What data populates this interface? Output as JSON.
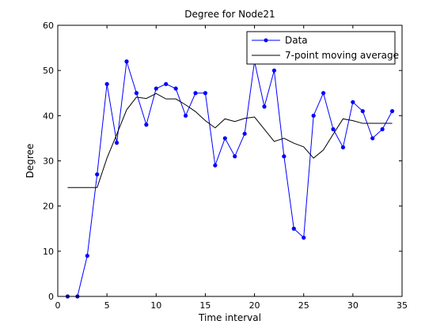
{
  "chart_data": {
    "type": "line",
    "title": "Degree for Node21",
    "xlabel": "Time interval",
    "ylabel": "Degree",
    "xlim": [
      0,
      35
    ],
    "ylim": [
      0,
      60
    ],
    "xticks": [
      "0",
      "5",
      "10",
      "15",
      "20",
      "25",
      "30",
      "35"
    ],
    "yticks": [
      "0",
      "10",
      "20",
      "30",
      "40",
      "50",
      "60"
    ],
    "grid": false,
    "legend_position": "top-right",
    "series": [
      {
        "name": "Data",
        "style": "line-with-markers",
        "color": "#0000ff",
        "x": [
          1,
          2,
          3,
          4,
          5,
          6,
          7,
          8,
          9,
          10,
          11,
          12,
          13,
          14,
          15,
          16,
          17,
          18,
          19,
          20,
          21,
          22,
          23,
          24,
          25,
          26,
          27,
          28,
          29,
          30,
          31,
          32,
          33,
          34
        ],
        "y": [
          0,
          0,
          9,
          27,
          47,
          34,
          52,
          45,
          38,
          46,
          47,
          46,
          40,
          45,
          45,
          29,
          35,
          31,
          36,
          52,
          42,
          50,
          31,
          15,
          13,
          40,
          45,
          37,
          33,
          43,
          41,
          35,
          37,
          41
        ]
      },
      {
        "name": "7-point moving average",
        "style": "line",
        "color": "#000000",
        "x": [
          1,
          2,
          3,
          4,
          5,
          6,
          7,
          8,
          9,
          10,
          11,
          12,
          13,
          14,
          15,
          16,
          17,
          18,
          19,
          20,
          21,
          22,
          23,
          24,
          25,
          26,
          27,
          28,
          29,
          30,
          31,
          32,
          33,
          34
        ],
        "y": [
          24.1,
          24.1,
          24.1,
          24.1,
          30.6,
          35.9,
          41.3,
          44.1,
          43.8,
          44.9,
          43.7,
          43.7,
          42.4,
          40.9,
          38.9,
          37.3,
          39.3,
          38.7,
          39.4,
          39.7,
          37.0,
          34.3,
          35.0,
          33.9,
          33.1,
          30.6,
          32.4,
          35.9,
          39.3,
          38.9,
          38.3,
          38.3,
          38.3,
          38.3
        ]
      }
    ]
  }
}
